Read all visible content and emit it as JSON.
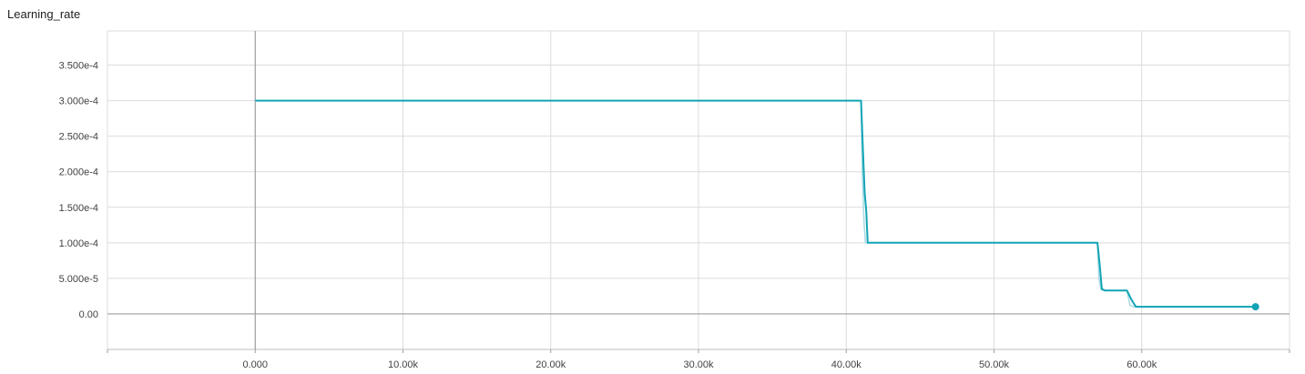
{
  "chart_data": {
    "type": "line",
    "title": "Learning_rate",
    "xlabel": "",
    "ylabel": "",
    "xlim": [
      -10000,
      70000
    ],
    "ylim": [
      -5e-05,
      0.000398
    ],
    "grid": true,
    "x_ticks": [
      0,
      10000,
      20000,
      30000,
      40000,
      50000,
      60000
    ],
    "x_tick_labels": [
      "0.000",
      "10.00k",
      "20.00k",
      "30.00k",
      "40.00k",
      "50.00k",
      "60.00k"
    ],
    "y_ticks": [
      0,
      5e-05,
      0.0001,
      0.00015,
      0.0002,
      0.00025,
      0.0003,
      0.00035
    ],
    "y_tick_labels": [
      "0.00",
      "5.000e-5",
      "1.000e-4",
      "1.500e-4",
      "2.000e-4",
      "2.500e-4",
      "3.000e-4",
      "3.500e-4"
    ],
    "colors": {
      "line": "#12a4b6",
      "raw_line": "#a6dbe2",
      "grid": "#dcdcdc",
      "zero_axis": "#9e9e9e"
    },
    "series": [
      {
        "x": [
          0,
          41000,
          41150,
          41250,
          41350,
          41450,
          42000,
          57000,
          57150,
          57300,
          57500,
          59000,
          59300,
          59600,
          67700
        ],
        "y": [
          0.0003,
          0.0003,
          0.00022,
          0.00017,
          0.000145,
          0.0001,
          0.0001,
          0.0001,
          7e-05,
          3.5e-05,
          3.3e-05,
          3.3e-05,
          2e-05,
          1e-05,
          1e-05
        ]
      }
    ],
    "raw_series": {
      "x": [
        0,
        41000,
        41080,
        41200,
        41300,
        41500,
        42000,
        57000,
        57100,
        57250,
        57500,
        59000,
        59200,
        59450,
        67700
      ],
      "y": [
        0.0003,
        0.0003,
        0.0002,
        0.00013,
        0.0001,
        0.0001,
        0.0001,
        0.0001,
        5e-05,
        3.4e-05,
        3.3e-05,
        3.3e-05,
        1.2e-05,
        1e-05,
        1e-05
      ]
    },
    "last_point": {
      "x": 67700,
      "y": 1e-05
    }
  }
}
